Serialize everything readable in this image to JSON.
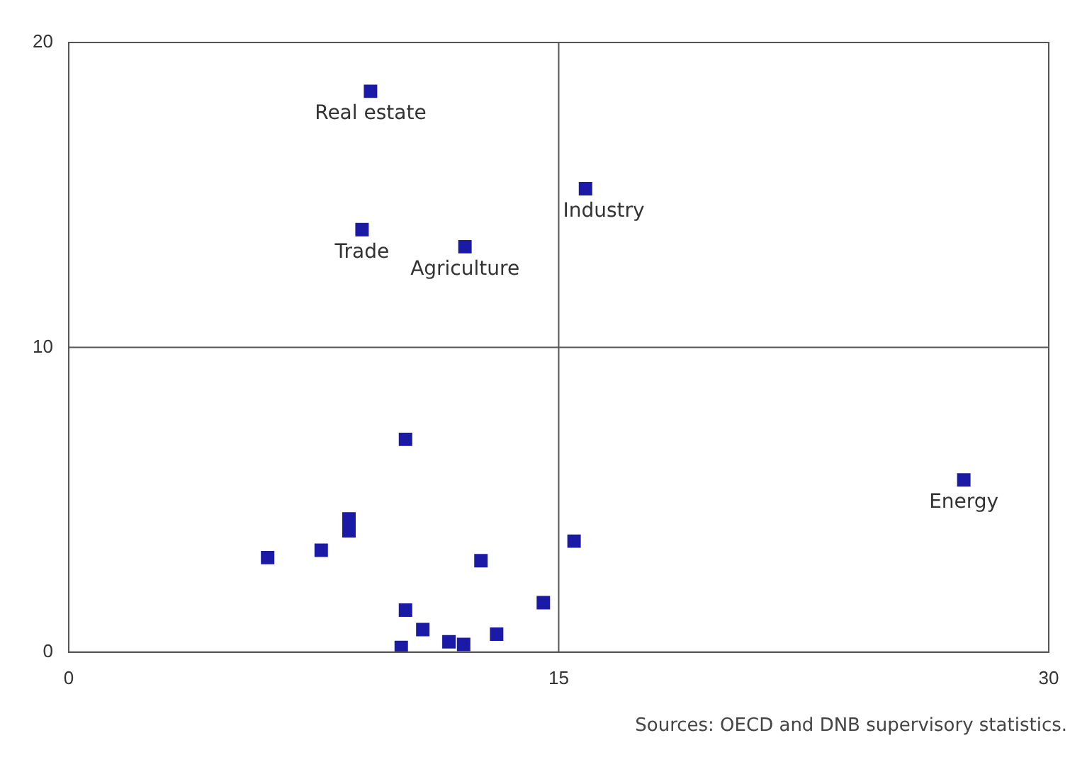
{
  "chart_data": {
    "type": "scatter",
    "x": [
      9.24,
      8.98,
      12.13,
      15.82,
      27.4,
      10.31,
      8.58,
      8.58,
      7.73,
      6.09,
      12.62,
      15.47,
      14.53,
      10.31,
      10.84,
      10.18,
      11.64,
      12.09,
      13.1
    ],
    "values": [
      18.4,
      13.86,
      13.3,
      15.2,
      5.65,
      6.98,
      4.37,
      3.98,
      3.34,
      3.1,
      3.0,
      3.64,
      1.62,
      1.38,
      0.74,
      0.15,
      0.34,
      0.25,
      0.59
    ],
    "color": "#1a1aa6",
    "marker": "square",
    "xlim": [
      0,
      30
    ],
    "ylim": [
      0,
      20
    ],
    "xticks": [
      0,
      15,
      30
    ],
    "yticks": [
      0,
      10,
      20
    ],
    "grid": false,
    "legend": false,
    "ref_lines": [
      {
        "axis": "x",
        "value": 15,
        "color": "#555555"
      },
      {
        "axis": "y",
        "value": 10,
        "color": "#555555"
      }
    ],
    "annotations": [
      {
        "text": "Real estate",
        "x": 9.24,
        "y": 18.4
      },
      {
        "text": "Trade",
        "x": 8.98,
        "y": 13.86
      },
      {
        "text": "Agriculture",
        "x": 12.13,
        "y": 13.3
      },
      {
        "text": "Industry",
        "x": 15.82,
        "y": 15.2
      },
      {
        "text": "Energy",
        "x": 27.4,
        "y": 5.65
      },
      "Sources: OECD and DNB supervisory statistics."
    ]
  }
}
